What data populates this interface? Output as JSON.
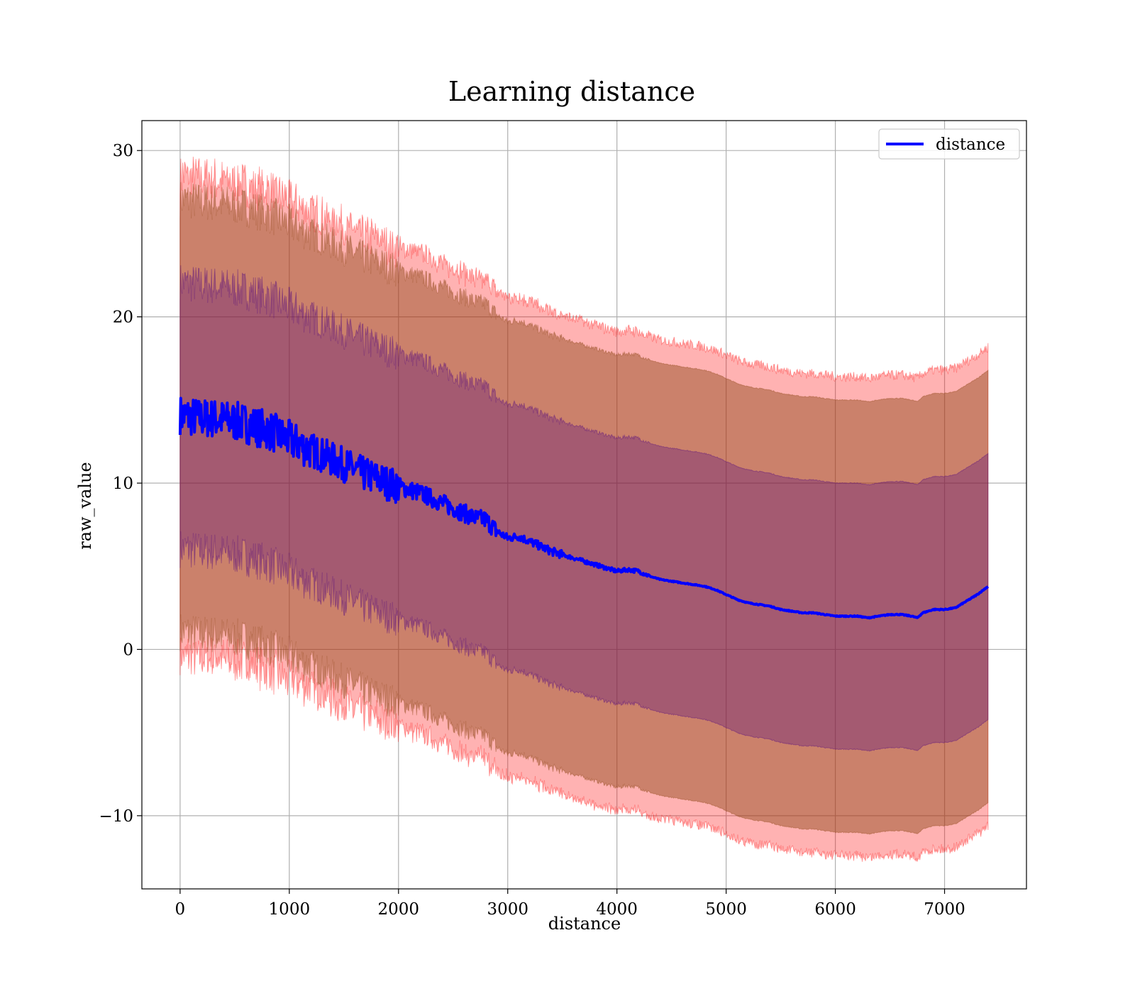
{
  "chart_data": {
    "type": "line",
    "title": "Learning distance",
    "xlabel": "distance",
    "ylabel": "raw_value",
    "xlim": [
      -350,
      7750
    ],
    "ylim": [
      -14.4,
      31.8
    ],
    "xticks": [
      0,
      1000,
      2000,
      3000,
      4000,
      5000,
      6000,
      7000
    ],
    "yticks": [
      -10,
      0,
      10,
      20,
      30
    ],
    "xtick_labels": [
      "0",
      "1000",
      "2000",
      "3000",
      "4000",
      "5000",
      "6000",
      "7000"
    ],
    "ytick_labels": [
      "−10",
      "0",
      "10",
      "20",
      "30"
    ],
    "grid": true,
    "legend": {
      "placement": "top-right",
      "entries": [
        "distance"
      ]
    },
    "series": [
      {
        "name": "distance",
        "color": "#0000ff",
        "x": [
          0,
          100,
          200,
          300,
          400,
          500,
          600,
          700,
          800,
          900,
          1000,
          1100,
          1200,
          1300,
          1400,
          1500,
          1600,
          1700,
          1800,
          1900,
          2000,
          2100,
          2200,
          2300,
          2400,
          2500,
          2600,
          2700,
          2800,
          2900,
          3000,
          3100,
          3200,
          3300,
          3400,
          3500,
          3600,
          3700,
          3800,
          3900,
          4000,
          4100,
          4200,
          4300,
          4400,
          4500,
          4600,
          4700,
          4800,
          4900,
          5000,
          5100,
          5200,
          5300,
          5400,
          5500,
          5600,
          5700,
          5800,
          5900,
          6000,
          6100,
          6200,
          6300,
          6400,
          6500,
          6600,
          6700,
          6750,
          6800,
          6900,
          7000,
          7100,
          7200,
          7300,
          7400
        ],
        "y": [
          14.1,
          14.0,
          13.9,
          13.9,
          13.8,
          13.7,
          13.6,
          13.4,
          13.2,
          12.9,
          12.6,
          12.3,
          12.0,
          11.7,
          11.4,
          11.1,
          10.8,
          10.5,
          10.3,
          10.0,
          9.8,
          9.6,
          9.4,
          9.1,
          8.8,
          8.5,
          8.2,
          7.9,
          7.8,
          7.1,
          6.7,
          6.8,
          6.5,
          6.2,
          5.9,
          5.7,
          5.5,
          5.3,
          5.1,
          4.9,
          4.7,
          4.8,
          4.7,
          4.4,
          4.2,
          4.1,
          4.0,
          3.9,
          3.8,
          3.6,
          3.3,
          3.0,
          2.8,
          2.7,
          2.6,
          2.4,
          2.3,
          2.2,
          2.2,
          2.1,
          2.0,
          2.0,
          2.0,
          1.9,
          2.0,
          2.1,
          2.1,
          2.0,
          1.9,
          2.2,
          2.4,
          2.4,
          2.5,
          2.9,
          3.3,
          3.8
        ]
      },
      {
        "name": "",
        "type": "band",
        "color": "#ff0000",
        "opacity": 0.3,
        "spread": 14.4
      },
      {
        "name": "",
        "type": "band",
        "color": "#8b4513",
        "opacity": 0.45,
        "spread": 13.0
      },
      {
        "name": "",
        "type": "band",
        "color": "#4b0082",
        "opacity": 0.3,
        "spread": 8.0
      }
    ]
  }
}
